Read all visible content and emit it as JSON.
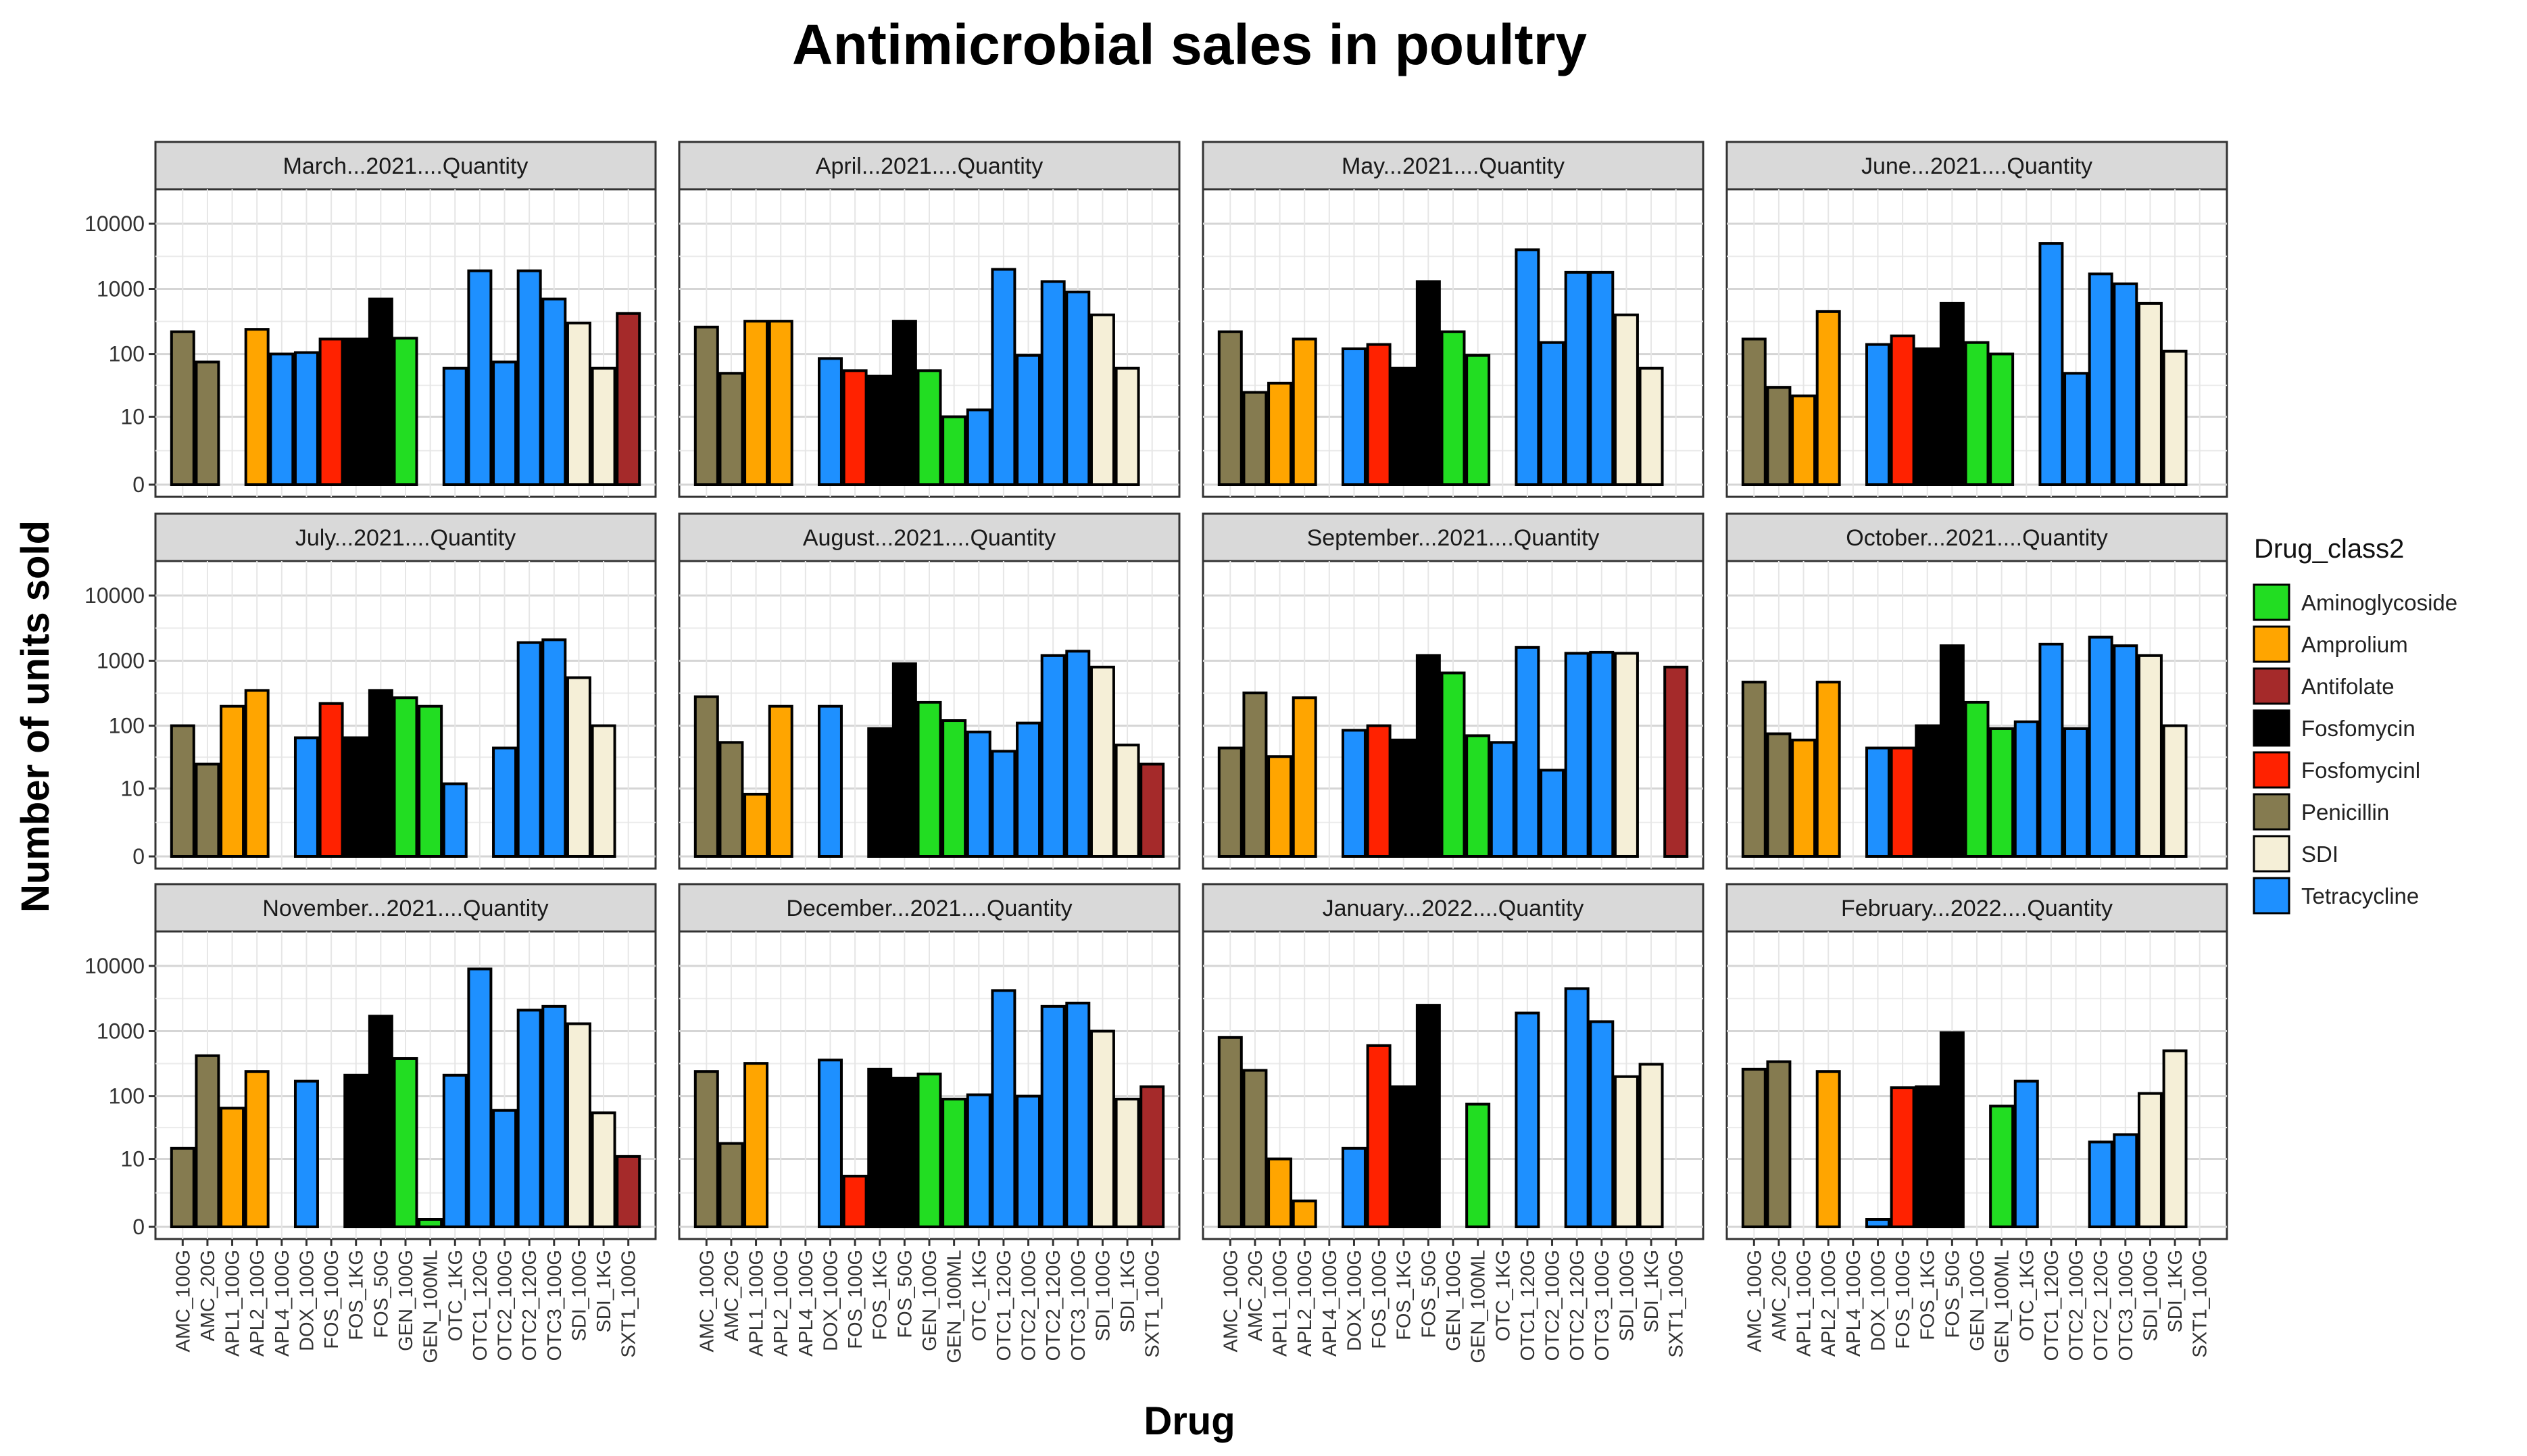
{
  "chart_data": {
    "type": "bar",
    "title": "Antimicrobial sales in poultry",
    "xlabel": "Drug",
    "ylabel": "Number of units sold",
    "y_scale": "log10(x+1)",
    "y_ticks": [
      "0",
      "10",
      "100",
      "1000",
      "10000"
    ],
    "y_tick_values": [
      0,
      10,
      100,
      1000,
      10000
    ],
    "legend": {
      "title": "Drug_class2",
      "placement": "right",
      "entries": [
        {
          "name": "Aminoglycoside",
          "color": "#22DD22"
        },
        {
          "name": "Amprolium",
          "color": "#FFA500"
        },
        {
          "name": "Antifolate",
          "color": "#A52A2A"
        },
        {
          "name": "Fosfomycin",
          "color": "#000000"
        },
        {
          "name": "Fosfomycinl",
          "color": "#FF2200"
        },
        {
          "name": "Penicillin",
          "color": "#857B50"
        },
        {
          "name": "SDI",
          "color": "#F5EFD7"
        },
        {
          "name": "Tetracycline",
          "color": "#1E90FF"
        }
      ]
    },
    "categories": [
      "AMC_100G",
      "AMC_20G",
      "APL1_100G",
      "APL2_100G",
      "APL4_100G",
      "DOX_100G",
      "FOS_100G",
      "FOS_1KG",
      "FOS_50G",
      "GEN_100G",
      "GEN_100ML",
      "OTC_1KG",
      "OTC1_120G",
      "OTC2_100G",
      "OTC2_120G",
      "OTC3_100G",
      "SDI_100G",
      "SDI_1KG",
      "SXT1_100G"
    ],
    "category_classes": [
      "Penicillin",
      "Penicillin",
      "Amprolium",
      "Amprolium",
      "Tetracycline",
      "Tetracycline",
      "Fosfomycinl",
      "Fosfomycin",
      "Fosfomycin",
      "Aminoglycoside",
      "Aminoglycoside",
      "Tetracycline",
      "Tetracycline",
      "Tetracycline",
      "Tetracycline",
      "Tetracycline",
      "SDI",
      "SDI",
      "Antifolate"
    ],
    "panels": [
      {
        "label": "March...2021....Quantity",
        "values": [
          220,
          75,
          null,
          240,
          100,
          105,
          170,
          170,
          700,
          175,
          null,
          60,
          1900,
          75,
          1900,
          700,
          300,
          60,
          420
        ]
      },
      {
        "label": "April...2021....Quantity",
        "values": [
          260,
          50,
          320,
          320,
          null,
          85,
          55,
          45,
          320,
          55,
          10,
          13,
          2000,
          95,
          1300,
          900,
          400,
          60,
          null
        ]
      },
      {
        "label": "May...2021....Quantity",
        "values": [
          220,
          25,
          35,
          170,
          null,
          120,
          140,
          60,
          1300,
          220,
          95,
          null,
          4000,
          150,
          1800,
          1800,
          400,
          60,
          null
        ]
      },
      {
        "label": "June...2021....Quantity",
        "values": [
          170,
          30,
          22,
          450,
          null,
          140,
          190,
          120,
          600,
          150,
          100,
          null,
          5000,
          50,
          1700,
          1200,
          600,
          110,
          null
        ]
      },
      {
        "label": "July...2021....Quantity",
        "values": [
          100,
          25,
          200,
          350,
          null,
          65,
          220,
          65,
          350,
          270,
          200,
          12,
          null,
          45,
          1900,
          2100,
          550,
          100,
          null
        ]
      },
      {
        "label": "August...2021....Quantity",
        "values": [
          280,
          55,
          8,
          200,
          null,
          200,
          null,
          90,
          900,
          230,
          120,
          80,
          40,
          110,
          1200,
          1400,
          800,
          50,
          25
        ]
      },
      {
        "label": "September...2021....Quantity",
        "values": [
          45,
          320,
          33,
          270,
          null,
          85,
          100,
          60,
          1200,
          650,
          70,
          55,
          1600,
          20,
          1300,
          1350,
          1300,
          null,
          800
        ]
      },
      {
        "label": "October...2021....Quantity",
        "values": [
          470,
          75,
          60,
          470,
          null,
          45,
          45,
          100,
          1700,
          230,
          90,
          115,
          1800,
          90,
          2300,
          1700,
          1200,
          100,
          null
        ]
      },
      {
        "label": "November...2021....Quantity",
        "values": [
          15,
          420,
          65,
          240,
          null,
          170,
          null,
          210,
          1700,
          380,
          0.3,
          210,
          9000,
          60,
          2100,
          2400,
          1300,
          55,
          11
        ]
      },
      {
        "label": "December...2021....Quantity",
        "values": [
          240,
          18,
          320,
          null,
          null,
          360,
          5,
          260,
          190,
          220,
          90,
          105,
          4200,
          100,
          2400,
          2700,
          1000,
          90,
          140
        ]
      },
      {
        "label": "January...2022....Quantity",
        "values": [
          800,
          250,
          10,
          1.5,
          null,
          15,
          600,
          140,
          2500,
          null,
          75,
          null,
          1900,
          null,
          4500,
          1400,
          200,
          310,
          null
        ]
      },
      {
        "label": "February...2022....Quantity",
        "values": [
          260,
          340,
          null,
          240,
          null,
          0.3,
          135,
          140,
          950,
          null,
          70,
          170,
          null,
          null,
          19,
          25,
          110,
          500,
          null
        ]
      }
    ]
  }
}
